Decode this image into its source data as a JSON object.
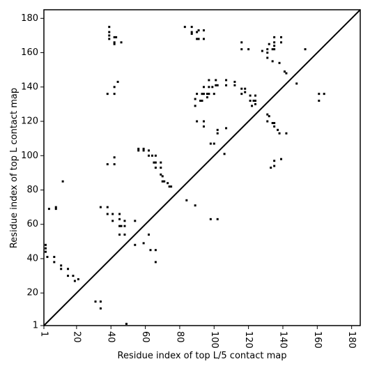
{
  "chart_data": {
    "type": "scatter",
    "x_label": "Residue index of top L/5 contact map",
    "y_label": "Residue index of top L contact map",
    "xlim": [
      1,
      185
    ],
    "ylim": [
      1,
      185
    ],
    "xticks": [
      1,
      20,
      40,
      60,
      80,
      100,
      120,
      140,
      160,
      180
    ],
    "yticks": [
      1,
      20,
      40,
      60,
      80,
      100,
      120,
      140,
      160,
      180
    ],
    "color": "#000000",
    "diagonal": true,
    "x": [
      39,
      39,
      39,
      39,
      42,
      43,
      42,
      42,
      46,
      83,
      87,
      87,
      87,
      90,
      91,
      94,
      90,
      91,
      94,
      116,
      116,
      120,
      128,
      131,
      131,
      131,
      132,
      135,
      135,
      135,
      135,
      134,
      139,
      139,
      134,
      138,
      141,
      142,
      148,
      153,
      97,
      101,
      107,
      107,
      97,
      99,
      101,
      102,
      94,
      93,
      94,
      96,
      97,
      90,
      89,
      92,
      93,
      96,
      100,
      89,
      112,
      112,
      116,
      118,
      116,
      118,
      121,
      121,
      123,
      124,
      124,
      122,
      124,
      90,
      94,
      94,
      98,
      100,
      102,
      102,
      107,
      106,
      131,
      132,
      131,
      134,
      135,
      135,
      137,
      138,
      142,
      135,
      139,
      133,
      135,
      161,
      161,
      164,
      44,
      38,
      42,
      42,
      38,
      42,
      42,
      12,
      56,
      56,
      59,
      59,
      62,
      62,
      64,
      66,
      65,
      66,
      69,
      69,
      66,
      69,
      70,
      70,
      71,
      73,
      74,
      75,
      84,
      89,
      98,
      102,
      4,
      8,
      8,
      34,
      38,
      38,
      41,
      45,
      41,
      45,
      45,
      46,
      48,
      48,
      54,
      45,
      48,
      62,
      54,
      59,
      63,
      66,
      66,
      49,
      2,
      2,
      2,
      3,
      7,
      7,
      11,
      11,
      15,
      15,
      18,
      19,
      21,
      31,
      34,
      34
    ],
    "values": [
      175,
      172,
      170,
      168,
      169,
      169,
      166,
      165,
      166,
      175,
      175,
      172,
      171,
      172,
      173,
      173,
      168,
      168,
      168,
      166,
      162,
      162,
      161,
      162,
      160,
      157,
      165,
      169,
      166,
      164,
      162,
      162,
      169,
      166,
      155,
      154,
      149,
      148,
      142,
      162,
      144,
      144,
      144,
      141,
      140,
      140,
      141,
      141,
      140,
      136,
      136,
      136,
      136,
      136,
      133,
      132,
      132,
      134,
      136,
      129,
      143,
      141,
      139,
      139,
      136,
      137,
      135,
      132,
      132,
      132,
      130,
      129,
      135,
      120,
      120,
      117,
      107,
      107,
      115,
      113,
      116,
      101,
      124,
      123,
      120,
      119,
      119,
      117,
      115,
      113,
      113,
      97,
      98,
      93,
      94,
      136,
      132,
      136,
      143,
      136,
      136,
      140,
      95,
      95,
      99,
      85,
      103,
      104,
      103,
      104,
      103,
      100,
      100,
      100,
      96,
      96,
      96,
      93,
      93,
      89,
      88,
      85,
      85,
      84,
      82,
      82,
      74,
      71,
      63,
      63,
      69,
      70,
      69,
      70,
      70,
      66,
      66,
      66,
      62,
      63,
      59,
      59,
      62,
      59,
      62,
      54,
      54,
      54,
      48,
      49,
      45,
      45,
      38,
      2,
      48,
      46,
      44,
      41,
      41,
      38,
      36,
      34,
      34,
      30,
      30,
      27,
      28,
      15,
      15,
      11
    ]
  }
}
